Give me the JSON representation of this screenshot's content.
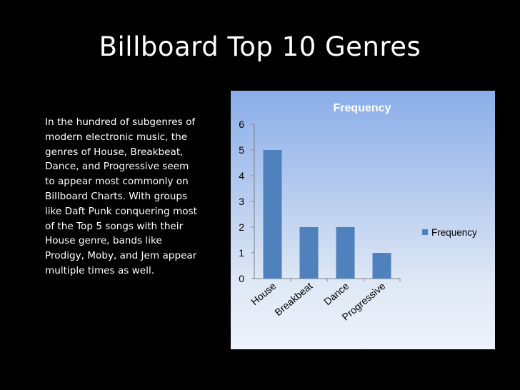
{
  "slide": {
    "title": "Billboard Top 10 Genres",
    "body": "In the hundred of subgenres of modern electronic music, the genres of House, Breakbeat, Dance, and Progressive seem to appear most commonly on Billboard Charts. With groups like Daft Punk conquering most of the Top 5 songs with their House genre, bands like Prodigy, Moby, and Jem appear multiple times as well."
  },
  "chart_data": {
    "type": "bar",
    "title": "Frequency",
    "categories": [
      "House",
      "Breakbeat",
      "Dance",
      "Progressive"
    ],
    "series": [
      {
        "name": "Frequency",
        "values": [
          5,
          2,
          2,
          1
        ]
      }
    ],
    "ylim": [
      0,
      6
    ],
    "yticks": [
      "0",
      "1",
      "2",
      "3",
      "4",
      "5",
      "6"
    ],
    "legend_position": "right",
    "grid": false,
    "colors": {
      "bar": "#4f81bd",
      "title": "#ffffff",
      "text": "#000000"
    }
  }
}
